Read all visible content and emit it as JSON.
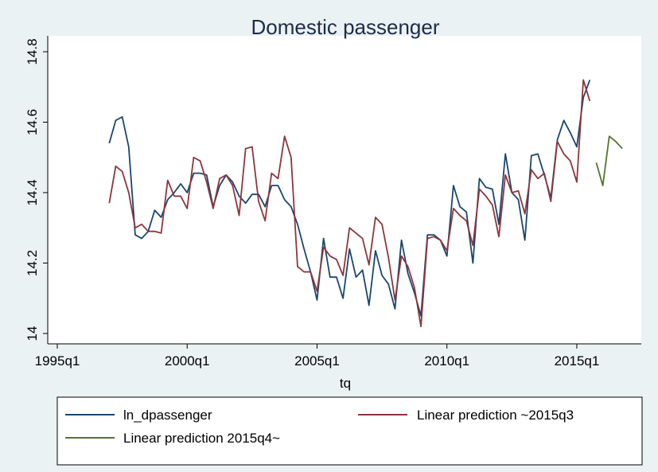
{
  "chart_data": {
    "type": "line",
    "title": "Domestic passenger",
    "xlabel": "tq",
    "ylabel": "",
    "xlim": [
      1995.0,
      2016.9
    ],
    "ylim": [
      14.0,
      14.8
    ],
    "x_ticks": [
      {
        "value": 1995.0,
        "label": "1995q1"
      },
      {
        "value": 2000.0,
        "label": "2000q1"
      },
      {
        "value": 2005.0,
        "label": "2005q1"
      },
      {
        "value": 2010.0,
        "label": "2010q1"
      },
      {
        "value": 2015.0,
        "label": "2015q1"
      }
    ],
    "y_ticks": [
      {
        "value": 14.0,
        "label": "14"
      },
      {
        "value": 14.2,
        "label": "14.2"
      },
      {
        "value": 14.4,
        "label": "14.4"
      },
      {
        "value": 14.6,
        "label": "14.6"
      },
      {
        "value": 14.8,
        "label": "14.8"
      }
    ],
    "grid": false,
    "legend_position": "bottom",
    "series": [
      {
        "name": "ln_dpassenger",
        "color": "#1a476f",
        "x_start": 1997.0,
        "step": 0.25,
        "values": [
          14.54,
          14.605,
          14.615,
          14.53,
          14.28,
          14.27,
          14.29,
          14.35,
          14.33,
          14.38,
          14.4,
          14.425,
          14.4,
          14.455,
          14.455,
          14.45,
          14.36,
          14.42,
          14.45,
          14.43,
          14.39,
          14.37,
          14.395,
          14.395,
          14.36,
          14.42,
          14.42,
          14.38,
          14.36,
          14.31,
          14.24,
          14.175,
          14.095,
          14.27,
          14.16,
          14.16,
          14.1,
          14.24,
          14.16,
          14.18,
          14.08,
          14.235,
          14.165,
          14.14,
          14.07,
          14.265,
          14.17,
          14.115,
          14.05,
          14.28,
          14.28,
          14.265,
          14.22,
          14.42,
          14.36,
          14.345,
          14.2,
          14.44,
          14.415,
          14.41,
          14.31,
          14.51,
          14.4,
          14.38,
          14.265,
          14.505,
          14.51,
          14.45,
          14.385,
          14.55,
          14.605,
          14.57,
          14.53,
          14.67,
          14.72
        ]
      },
      {
        "name": "Linear prediction ~2015q3",
        "color": "#90353b",
        "x_start": 1997.0,
        "step": 0.25,
        "values": [
          14.37,
          14.475,
          14.46,
          14.4,
          14.3,
          14.31,
          14.29,
          14.29,
          14.285,
          14.435,
          14.39,
          14.39,
          14.355,
          14.5,
          14.49,
          14.43,
          14.355,
          14.44,
          14.45,
          14.42,
          14.335,
          14.525,
          14.53,
          14.375,
          14.32,
          14.455,
          14.44,
          14.56,
          14.5,
          14.19,
          14.175,
          14.175,
          14.12,
          14.245,
          14.22,
          14.21,
          14.165,
          14.3,
          14.285,
          14.27,
          14.195,
          14.33,
          14.31,
          14.215,
          14.095,
          14.22,
          14.19,
          14.13,
          14.02,
          14.27,
          14.275,
          14.265,
          14.235,
          14.355,
          14.335,
          14.32,
          14.25,
          14.41,
          14.39,
          14.365,
          14.275,
          14.45,
          14.4,
          14.405,
          14.34,
          14.465,
          14.44,
          14.455,
          14.375,
          14.545,
          14.51,
          14.49,
          14.43,
          14.72,
          14.66
        ]
      },
      {
        "name": "Linear prediction 2015q4~",
        "color": "#55752f",
        "x_start": 2015.75,
        "step": 0.25,
        "values": [
          14.485,
          14.42,
          14.56,
          14.545,
          14.525
        ]
      }
    ]
  }
}
